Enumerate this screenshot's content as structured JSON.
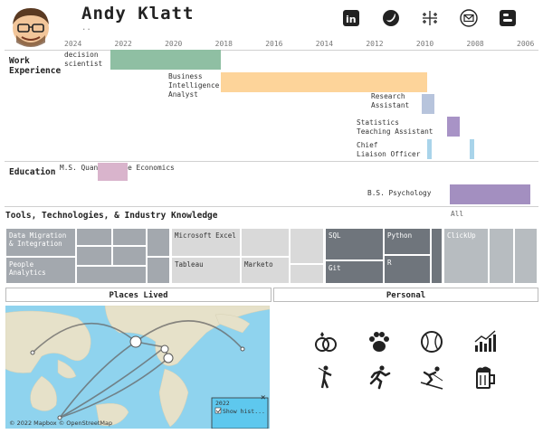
{
  "header": {
    "name": "Andy Klatt",
    "dots": ".."
  },
  "social": [
    "linkedin-icon",
    "twitter-icon",
    "tableau-icon",
    "email-icon",
    "blogger-icon"
  ],
  "axis": [
    "2024",
    "2022",
    "2020",
    "2018",
    "2016",
    "2014",
    "2012",
    "2010",
    "2008",
    "2006"
  ],
  "sections": {
    "work": "Work\nExperience",
    "education": "Education",
    "tools": "Tools, Technologies, & Industry Knowledge"
  },
  "jobs": [
    {
      "label": "decision\nscientist",
      "start": 2022.5,
      "end": 2018.1,
      "color": "#8fbfa3"
    },
    {
      "label": "Business\nIntelligence\nAnalyst",
      "start": 2018.1,
      "end": 2009.9,
      "color": "#fdd49a"
    },
    {
      "label": "Research\nAssistant",
      "start": 2010.1,
      "end": 2009.6,
      "color": "#b7c4dc"
    },
    {
      "label": "Statistics\nTeaching Assistant",
      "start": 2009.1,
      "end": 2008.6,
      "color": "#a893c6"
    },
    {
      "label": "Chief\nLiaison Officer",
      "start": 2009.9,
      "end": 2009.7,
      "color": "#a9d4ea"
    }
  ],
  "job_extra": {
    "chief_bar2_start": 2008.2,
    "chief_bar2_end": 2008.0
  },
  "education": [
    {
      "label": "M.S. Quantitative Economics",
      "start": 2023.0,
      "end": 2021.8,
      "color": "#d9b4cc"
    },
    {
      "label": "B.S. Psychology",
      "start": 2009.0,
      "end": 2005.8,
      "color": "#a38fc0"
    }
  ],
  "edu_all": "All",
  "tools": {
    "data_migration": "Data Migration\n& Integration",
    "people_analytics": "People\nAnalytics",
    "excel": "Microsoft Excel",
    "tableau": "Tableau",
    "marketo": "Marketo",
    "sql": "SQL",
    "python": "Python",
    "git": "Git",
    "r": "R",
    "clickup": "ClickUp"
  },
  "panels": {
    "places": "Places Lived",
    "personal": "Personal"
  },
  "map": {
    "attribution": "© 2022 Mapbox © OpenStreetMap",
    "popup_year": "2022",
    "popup_check": "Show hist..."
  },
  "personal_icons": [
    "rings-icon",
    "paw-icon",
    "baseball-icon",
    "bar-chart-icon",
    "golf-icon",
    "running-icon",
    "skiing-icon",
    "beer-icon"
  ]
}
